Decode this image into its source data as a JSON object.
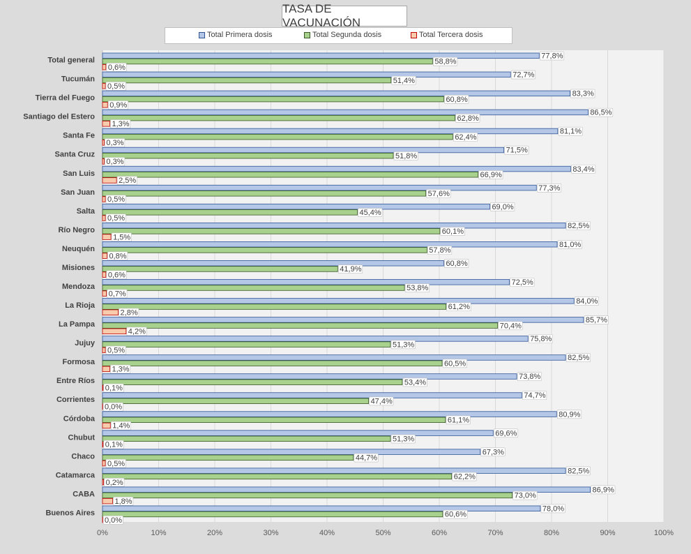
{
  "chart_data": {
    "type": "bar",
    "orientation": "horizontal",
    "title": "TASA DE VACUNACIÓN",
    "categories": [
      "Total general",
      "Tucumán",
      "Tierra del Fuego",
      "Santiago del Estero",
      "Santa Fe",
      "Santa Cruz",
      "San Luis",
      "San Juan",
      "Salta",
      "Río Negro",
      "Neuquén",
      "Misiones",
      "Mendoza",
      "La Rioja",
      "La Pampa",
      "Jujuy",
      "Formosa",
      "Entre Ríos",
      "Corrientes",
      "Córdoba",
      "Chubut",
      "Chaco",
      "Catamarca",
      "CABA",
      "Buenos Aires"
    ],
    "series": [
      {
        "name": "Total Primera dosis",
        "color": "#b4c7e7",
        "border": "#2f5597",
        "values": [
          77.8,
          72.7,
          83.3,
          86.5,
          81.1,
          71.5,
          83.4,
          77.3,
          69.0,
          82.5,
          81.0,
          60.8,
          72.5,
          84.0,
          85.7,
          75.8,
          82.5,
          73.8,
          74.7,
          80.9,
          69.6,
          67.3,
          82.5,
          86.9,
          78.0
        ],
        "labels": [
          "77,8%",
          "72,7%",
          "83,3%",
          "86,5%",
          "81,1%",
          "71,5%",
          "83,4%",
          "77,3%",
          "69,0%",
          "82,5%",
          "81,0%",
          "60,8%",
          "72,5%",
          "84,0%",
          "85,7%",
          "75,8%",
          "82,5%",
          "73,8%",
          "74,7%",
          "80,9%",
          "69,6%",
          "67,3%",
          "82,5%",
          "86,9%",
          "78,0%"
        ]
      },
      {
        "name": "Total Segunda dosis",
        "color": "#a9d18e",
        "border": "#385723",
        "values": [
          58.8,
          51.4,
          60.8,
          62.8,
          62.4,
          51.8,
          66.9,
          57.6,
          45.4,
          60.1,
          57.8,
          41.9,
          53.8,
          61.2,
          70.4,
          51.3,
          60.5,
          53.4,
          47.4,
          61.1,
          51.3,
          44.7,
          62.2,
          73.0,
          60.6
        ],
        "labels": [
          "58,8%",
          "51,4%",
          "60,8%",
          "62,8%",
          "62,4%",
          "51,8%",
          "66,9%",
          "57,6%",
          "45,4%",
          "60,1%",
          "57,8%",
          "41,9%",
          "53,8%",
          "61,2%",
          "70,4%",
          "51,3%",
          "60,5%",
          "53,4%",
          "47,4%",
          "61,1%",
          "51,3%",
          "44,7%",
          "62,2%",
          "73,0%",
          "60,6%"
        ]
      },
      {
        "name": "Total Tercera dosis",
        "color": "#f8cbad",
        "border": "#c00000",
        "values": [
          0.6,
          0.5,
          0.9,
          1.3,
          0.3,
          0.3,
          2.5,
          0.5,
          0.5,
          1.5,
          0.8,
          0.6,
          0.7,
          2.8,
          4.2,
          0.5,
          1.3,
          0.1,
          0.0,
          1.4,
          0.1,
          0.5,
          0.2,
          1.8,
          0.0
        ],
        "labels": [
          "0,6%",
          "0,5%",
          "0,9%",
          "1,3%",
          "0,3%",
          "0,3%",
          "2,5%",
          "0,5%",
          "0,5%",
          "1,5%",
          "0,8%",
          "0,6%",
          "0,7%",
          "2,8%",
          "4,2%",
          "0,5%",
          "1,3%",
          "0,1%",
          "0,0%",
          "1,4%",
          "0,1%",
          "0,5%",
          "0,2%",
          "1,8%",
          "0,0%"
        ]
      }
    ],
    "xlim": [
      0,
      100
    ],
    "x_ticks": [
      0,
      10,
      20,
      30,
      40,
      50,
      60,
      70,
      80,
      90,
      100
    ],
    "x_tick_labels": [
      "0%",
      "10%",
      "20%",
      "30%",
      "40%",
      "50%",
      "60%",
      "70%",
      "80%",
      "90%",
      "100%"
    ],
    "grid": true,
    "legend_position": "top"
  }
}
